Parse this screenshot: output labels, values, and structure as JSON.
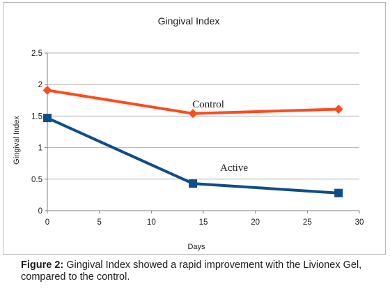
{
  "chart_data": {
    "type": "line",
    "title": "Gingival Index",
    "xlabel": "Days",
    "ylabel": "Gingival Index",
    "xlim": [
      0,
      30
    ],
    "ylim": [
      0,
      2.5
    ],
    "x_ticks": [
      "0",
      "5",
      "10",
      "15",
      "20",
      "25",
      "30"
    ],
    "y_ticks": [
      "0",
      "0.5",
      "1",
      "1.5",
      "2",
      "2.5"
    ],
    "grid": "horizontal",
    "legend": "none",
    "series": [
      {
        "name": "Control",
        "color": "#ff4a1c",
        "marker": "diamond",
        "x": [
          0,
          14,
          28
        ],
        "y": [
          1.91,
          1.54,
          1.61
        ]
      },
      {
        "name": "Active",
        "color": "#0f4c8a",
        "marker": "square",
        "x": [
          0,
          14,
          28
        ],
        "y": [
          1.47,
          0.43,
          0.28
        ]
      }
    ]
  },
  "caption": {
    "label": "Figure 2:",
    "text": " Gingival Index showed a rapid improvement with the Livionex Gel, compared to the control."
  }
}
